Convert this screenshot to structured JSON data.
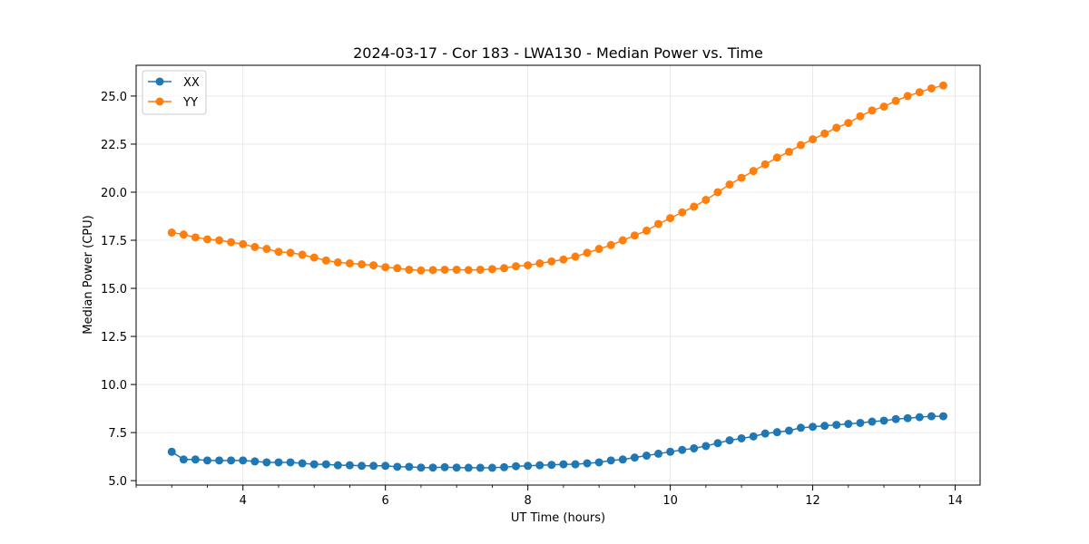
{
  "chart_data": {
    "type": "line",
    "title": "2024-03-17 - Cor 183 - LWA130 - Median Power vs. Time",
    "xlabel": "UT Time (hours)",
    "ylabel": "Median Power (CPU)",
    "xlim": [
      2.5,
      14.35
    ],
    "ylim": [
      4.77,
      26.6
    ],
    "xticks": [
      4,
      6,
      8,
      10,
      12,
      14
    ],
    "yticks": [
      5.0,
      7.5,
      10.0,
      12.5,
      15.0,
      17.5,
      20.0,
      22.5,
      25.0
    ],
    "grid": true,
    "legend": "top-left",
    "series": [
      {
        "name": "XX",
        "color": "#1f77b4",
        "x": [
          3.0,
          3.167,
          3.333,
          3.5,
          3.667,
          3.833,
          4.0,
          4.167,
          4.333,
          4.5,
          4.667,
          4.833,
          5.0,
          5.167,
          5.333,
          5.5,
          5.667,
          5.833,
          6.0,
          6.167,
          6.333,
          6.5,
          6.667,
          6.833,
          7.0,
          7.167,
          7.333,
          7.5,
          7.667,
          7.833,
          8.0,
          8.167,
          8.333,
          8.5,
          8.667,
          8.833,
          9.0,
          9.167,
          9.333,
          9.5,
          9.667,
          9.833,
          10.0,
          10.167,
          10.333,
          10.5,
          10.667,
          10.833,
          11.0,
          11.167,
          11.333,
          11.5,
          11.667,
          11.833,
          12.0,
          12.167,
          12.333,
          12.5,
          12.667,
          12.833,
          13.0,
          13.167,
          13.333,
          13.5,
          13.667,
          13.833
        ],
        "y": [
          6.5,
          6.1,
          6.1,
          6.05,
          6.05,
          6.05,
          6.05,
          6.0,
          5.95,
          5.95,
          5.95,
          5.9,
          5.85,
          5.85,
          5.8,
          5.8,
          5.77,
          5.77,
          5.77,
          5.72,
          5.72,
          5.68,
          5.68,
          5.7,
          5.68,
          5.67,
          5.67,
          5.67,
          5.7,
          5.75,
          5.77,
          5.8,
          5.82,
          5.85,
          5.85,
          5.9,
          5.95,
          6.05,
          6.1,
          6.2,
          6.3,
          6.4,
          6.5,
          6.6,
          6.68,
          6.8,
          6.95,
          7.1,
          7.2,
          7.3,
          7.45,
          7.52,
          7.6,
          7.75,
          7.8,
          7.85,
          7.9,
          7.95,
          8.0,
          8.07,
          8.12,
          8.2,
          8.25,
          8.3,
          8.35,
          8.35
        ]
      },
      {
        "name": "YY",
        "color": "#ff7f0e",
        "x": [
          3.0,
          3.167,
          3.333,
          3.5,
          3.667,
          3.833,
          4.0,
          4.167,
          4.333,
          4.5,
          4.667,
          4.833,
          5.0,
          5.167,
          5.333,
          5.5,
          5.667,
          5.833,
          6.0,
          6.167,
          6.333,
          6.5,
          6.667,
          6.833,
          7.0,
          7.167,
          7.333,
          7.5,
          7.667,
          7.833,
          8.0,
          8.167,
          8.333,
          8.5,
          8.667,
          8.833,
          9.0,
          9.167,
          9.333,
          9.5,
          9.667,
          9.833,
          10.0,
          10.167,
          10.333,
          10.5,
          10.667,
          10.833,
          11.0,
          11.167,
          11.333,
          11.5,
          11.667,
          11.833,
          12.0,
          12.167,
          12.333,
          12.5,
          12.667,
          12.833,
          13.0,
          13.167,
          13.333,
          13.5,
          13.667,
          13.833
        ],
        "y": [
          17.9,
          17.8,
          17.65,
          17.55,
          17.5,
          17.4,
          17.3,
          17.15,
          17.05,
          16.9,
          16.85,
          16.75,
          16.6,
          16.45,
          16.35,
          16.3,
          16.25,
          16.2,
          16.1,
          16.05,
          15.97,
          15.93,
          15.95,
          15.97,
          15.97,
          15.95,
          15.97,
          16.0,
          16.05,
          16.15,
          16.2,
          16.3,
          16.4,
          16.5,
          16.65,
          16.85,
          17.05,
          17.25,
          17.5,
          17.75,
          18.0,
          18.35,
          18.65,
          18.95,
          19.25,
          19.6,
          20.0,
          20.4,
          20.75,
          21.1,
          21.45,
          21.8,
          22.1,
          22.45,
          22.75,
          23.05,
          23.35,
          23.6,
          23.95,
          24.25,
          24.45,
          24.75,
          25.0,
          25.2,
          25.4,
          25.55
        ]
      }
    ]
  }
}
